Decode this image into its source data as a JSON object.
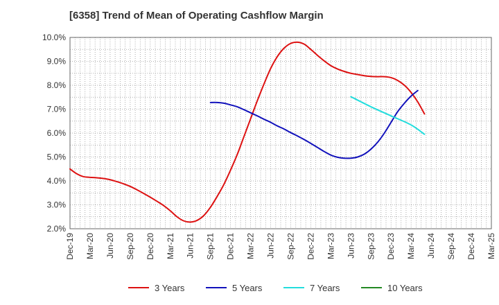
{
  "chart_data": {
    "type": "line",
    "title": "[6358]  Trend of Mean of Operating Cashflow Margin",
    "xlabel": "",
    "ylabel": "",
    "x_categories": [
      "Dec-19",
      "Mar-20",
      "Jun-20",
      "Sep-20",
      "Dec-20",
      "Mar-21",
      "Jun-21",
      "Sep-21",
      "Dec-21",
      "Mar-22",
      "Jun-22",
      "Sep-22",
      "Dec-22",
      "Mar-23",
      "Jun-23",
      "Sep-23",
      "Dec-23",
      "Mar-24",
      "Jun-24",
      "Sep-24",
      "Dec-24",
      "Mar-25"
    ],
    "ylim": [
      2.0,
      10.0
    ],
    "yticks": [
      "2.0%",
      "3.0%",
      "4.0%",
      "5.0%",
      "6.0%",
      "7.0%",
      "8.0%",
      "9.0%",
      "10.0%"
    ],
    "grid": true,
    "legend_position": "bottom",
    "series": [
      {
        "name": "3 Years",
        "color": "#dd1111",
        "points": [
          [
            "Dec-19",
            4.5
          ],
          [
            "Jan-20",
            4.3
          ],
          [
            "Feb-20",
            4.18
          ],
          [
            "Mar-20",
            4.15
          ],
          [
            "Apr-20",
            4.13
          ],
          [
            "May-20",
            4.1
          ],
          [
            "Jun-20",
            4.05
          ],
          [
            "Jul-20",
            3.97
          ],
          [
            "Aug-20",
            3.88
          ],
          [
            "Sep-20",
            3.77
          ],
          [
            "Oct-20",
            3.63
          ],
          [
            "Nov-20",
            3.48
          ],
          [
            "Dec-20",
            3.32
          ],
          [
            "Jan-21",
            3.15
          ],
          [
            "Feb-21",
            2.97
          ],
          [
            "Mar-21",
            2.75
          ],
          [
            "Apr-21",
            2.5
          ],
          [
            "May-21",
            2.33
          ],
          [
            "Jun-21",
            2.28
          ],
          [
            "Jul-21",
            2.35
          ],
          [
            "Aug-21",
            2.55
          ],
          [
            "Sep-21",
            2.9
          ],
          [
            "Oct-21",
            3.35
          ],
          [
            "Nov-21",
            3.85
          ],
          [
            "Dec-21",
            4.45
          ],
          [
            "Jan-22",
            5.1
          ],
          [
            "Feb-22",
            5.85
          ],
          [
            "Mar-22",
            6.6
          ],
          [
            "Apr-22",
            7.35
          ],
          [
            "May-22",
            8.05
          ],
          [
            "Jun-22",
            8.7
          ],
          [
            "Jul-22",
            9.2
          ],
          [
            "Aug-22",
            9.55
          ],
          [
            "Sep-22",
            9.75
          ],
          [
            "Oct-22",
            9.8
          ],
          [
            "Nov-22",
            9.72
          ],
          [
            "Dec-22",
            9.5
          ],
          [
            "Jan-23",
            9.25
          ],
          [
            "Feb-23",
            9.02
          ],
          [
            "Mar-23",
            8.82
          ],
          [
            "Apr-23",
            8.68
          ],
          [
            "May-23",
            8.58
          ],
          [
            "Jun-23",
            8.5
          ],
          [
            "Jul-23",
            8.45
          ],
          [
            "Aug-23",
            8.4
          ],
          [
            "Sep-23",
            8.37
          ],
          [
            "Oct-23",
            8.36
          ],
          [
            "Nov-23",
            8.36
          ],
          [
            "Dec-23",
            8.32
          ],
          [
            "Jan-24",
            8.2
          ],
          [
            "Feb-24",
            8.0
          ],
          [
            "Mar-24",
            7.7
          ],
          [
            "Apr-24",
            7.3
          ],
          [
            "May-24",
            6.8
          ]
        ]
      },
      {
        "name": "5 Years",
        "color": "#1111bb",
        "points": [
          [
            "Sep-21",
            7.28
          ],
          [
            "Oct-21",
            7.28
          ],
          [
            "Nov-21",
            7.25
          ],
          [
            "Dec-21",
            7.18
          ],
          [
            "Jan-22",
            7.1
          ],
          [
            "Feb-22",
            6.98
          ],
          [
            "Mar-22",
            6.85
          ],
          [
            "Apr-22",
            6.72
          ],
          [
            "May-22",
            6.58
          ],
          [
            "Jun-22",
            6.45
          ],
          [
            "Jul-22",
            6.3
          ],
          [
            "Aug-22",
            6.17
          ],
          [
            "Sep-22",
            6.02
          ],
          [
            "Oct-22",
            5.88
          ],
          [
            "Nov-22",
            5.73
          ],
          [
            "Dec-22",
            5.57
          ],
          [
            "Jan-23",
            5.4
          ],
          [
            "Feb-23",
            5.23
          ],
          [
            "Mar-23",
            5.08
          ],
          [
            "Apr-23",
            4.99
          ],
          [
            "May-23",
            4.95
          ],
          [
            "Jun-23",
            4.95
          ],
          [
            "Jul-23",
            5.0
          ],
          [
            "Aug-23",
            5.12
          ],
          [
            "Sep-23",
            5.33
          ],
          [
            "Oct-23",
            5.62
          ],
          [
            "Nov-23",
            6.0
          ],
          [
            "Dec-23",
            6.45
          ],
          [
            "Jan-24",
            6.9
          ],
          [
            "Feb-24",
            7.25
          ],
          [
            "Mar-24",
            7.55
          ],
          [
            "Apr-24",
            7.78
          ]
        ]
      },
      {
        "name": "7 Years",
        "color": "#22dddd",
        "points": [
          [
            "Jun-23",
            7.52
          ],
          [
            "Sep-23",
            7.1
          ],
          [
            "Dec-23",
            6.72
          ],
          [
            "Mar-24",
            6.34
          ],
          [
            "May-24",
            5.95
          ]
        ]
      },
      {
        "name": "10 Years",
        "color": "#228822",
        "points": []
      }
    ]
  }
}
